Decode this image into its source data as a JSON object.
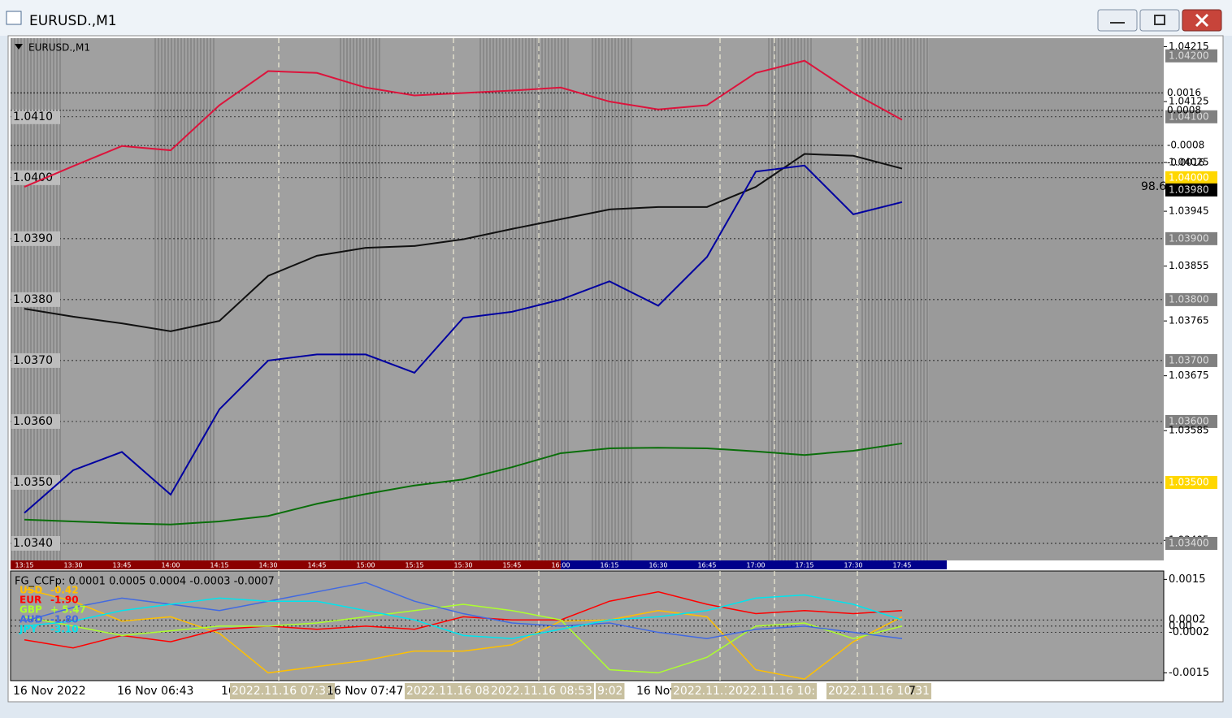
{
  "window": {
    "title": "EURUSD.,M1"
  },
  "chart_data": [
    {
      "type": "line",
      "title": "EURUSD.,M1",
      "x": [
        "13:15",
        "13:30",
        "13:45",
        "14:00",
        "14:15",
        "14:30",
        "14:45",
        "15:00",
        "15:15",
        "15:30",
        "15:45",
        "16:00",
        "16:15",
        "16:30",
        "16:45",
        "17:00",
        "17:15",
        "17:30",
        "17:45"
      ],
      "series": [
        {
          "color": "#dc143c",
          "values": [
            1.03985,
            1.04019,
            1.04052,
            1.04045,
            1.04119,
            1.04175,
            1.04172,
            1.04148,
            1.04135,
            1.04139,
            1.04143,
            1.04148,
            1.04125,
            1.04112,
            1.04119,
            1.04172,
            1.04192,
            1.04139,
            1.04095
          ]
        },
        {
          "color": "#111111",
          "values": [
            1.03785,
            1.03772,
            1.03761,
            1.03748,
            1.03765,
            1.03839,
            1.03872,
            1.03885,
            1.03888,
            1.03899,
            1.03916,
            1.03932,
            1.03948,
            1.03952,
            1.03952,
            1.03985,
            1.04039,
            1.04036,
            1.04015
          ]
        },
        {
          "color": "#0a6e0a",
          "values": [
            1.03439,
            1.03436,
            1.03433,
            1.03431,
            1.03436,
            1.03445,
            1.03465,
            1.03481,
            1.03495,
            1.03505,
            1.03525,
            1.03548,
            1.03556,
            1.03557,
            1.03556,
            1.03551,
            1.03545,
            1.03552,
            1.03564
          ]
        },
        {
          "color": "#0000a0",
          "values": [
            1.0345,
            1.0352,
            1.0355,
            1.0348,
            1.0362,
            1.037,
            1.0371,
            1.0371,
            1.0368,
            1.0377,
            1.0378,
            1.038,
            1.0383,
            1.0379,
            1.0387,
            1.0401,
            1.0402,
            1.0394,
            1.0396
          ]
        }
      ],
      "ylim": [
        1.03372,
        1.04229
      ],
      "yticks": [
        {
          "value": 1.041,
          "label": "1.0410"
        },
        {
          "value": 1.04,
          "label": "1.0400"
        },
        {
          "value": 1.039,
          "label": "1.0390"
        },
        {
          "value": 1.038,
          "label": "1.0380"
        },
        {
          "value": 1.037,
          "label": "1.0370"
        },
        {
          "value": 1.036,
          "label": "1.0360"
        },
        {
          "value": 1.035,
          "label": "1.0350"
        },
        {
          "value": 1.034,
          "label": "1.0340"
        }
      ],
      "price_labels": [
        1.04215,
        {
          "value": 1.042,
          "label": "1.04200",
          "color": "#808080"
        },
        1.04125,
        {
          "value": 1.041,
          "label": "1.04100",
          "color": "#808080"
        },
        1.04025,
        {
          "value": 1.04,
          "label": "1.04000",
          "color": "#ffd700"
        },
        {
          "value": 1.0398,
          "label": "1.03980",
          "color": "#000000"
        },
        1.03945,
        {
          "value": 1.039,
          "label": "1.03900",
          "color": "#808080"
        },
        1.03855,
        {
          "value": 1.038,
          "label": "1.03800",
          "color": "#808080"
        },
        1.03765,
        {
          "value": 1.037,
          "label": "1.03700",
          "color": "#808080"
        },
        1.03675,
        {
          "value": 1.036,
          "label": "1.03600",
          "color": "#808080"
        },
        1.03585,
        {
          "value": 1.035,
          "label": "1.03500",
          "color": "#ffd700"
        },
        1.03405,
        {
          "value": 1.034,
          "label": "1.03400",
          "color": "#808080"
        }
      ],
      "levels": [
        0.0016,
        0.0008,
        -0.0008,
        -0.0016
      ],
      "marker": 98.6
    },
    {
      "type": "line",
      "title": "FG_CCFp: 0.0001 0.0005 0.0004 -0.0003 -0.0007",
      "x": [
        "13:15",
        "13:30",
        "13:45",
        "14:00",
        "14:15",
        "14:30",
        "14:45",
        "15:00",
        "15:15",
        "15:30",
        "15:45",
        "16:00",
        "16:15",
        "16:30",
        "16:45",
        "17:00",
        "17:15",
        "17:30",
        "17:45"
      ],
      "series": [
        {
          "name": "USD",
          "reading": "-0.42",
          "color": "#ffc000",
          "values": [
            0.0012,
            0.0008,
            0.00016,
            0.0003,
            -0.00023,
            -0.0015,
            -0.0013,
            -0.0011,
            -0.0008,
            -0.0008,
            -0.0006,
            0.00016,
            0.0002,
            0.0005,
            0.0003,
            -0.0014,
            -0.0017,
            -0.0005,
            0.0003
          ]
        },
        {
          "name": "EUR",
          "reading": "-1.90",
          "color": "#ff0000",
          "values": [
            -0.00044,
            -0.0007,
            -0.0003,
            -0.0005,
            -0.0001,
            0,
            -0.0001,
            0,
            -0.0001,
            0.0003,
            0.0002,
            0.0002,
            0.0008,
            0.0011,
            0.0007,
            0.0004,
            0.0005,
            0.0004,
            0.0005
          ]
        },
        {
          "name": "GBP",
          "reading": "+  5.47",
          "color": "#adff2f",
          "values": [
            0.0003,
            0,
            -0.0003,
            -0.00015,
            0,
            0,
            0.0001,
            0.0003,
            0.0005,
            0.0007,
            0.0005,
            0.0002,
            -0.0014,
            -0.0015,
            -0.001,
            0,
            0.0001,
            -0.0004,
            0
          ]
        },
        {
          "name": "AUD",
          "reading": "-1.80",
          "color": "#4169e1",
          "values": [
            0.00016,
            0.0006,
            0.0009,
            0.0007,
            0.0005,
            0.0008,
            0.0011,
            0.0014,
            0.0008,
            0.0004,
            0.0001,
            0,
            0.0001,
            -0.0002,
            -0.0004,
            -0.0001,
            0,
            -0.0002,
            -0.0004
          ]
        },
        {
          "name": "JPY",
          "reading": "-3.10",
          "color": "#00e5ee",
          "values": [
            0,
            0.00016,
            0.0005,
            0.0007,
            0.0009,
            0.0008,
            0.0008,
            0.0005,
            0.0002,
            -0.0003,
            -0.0004,
            -0.0001,
            0.0002,
            0.0003,
            0.0005,
            0.0009,
            0.001,
            0.0007,
            0.0002
          ]
        }
      ],
      "ylim": [
        -0.00175,
        0.00177
      ],
      "yticks": [
        0.0015,
        0.0002,
        {
          "value": 0,
          "label": "0.00"
        },
        -0.0002,
        -0.0015
      ]
    }
  ],
  "footer": {
    "labels": [
      "16 Nov 2022",
      "16 Nov 06:43",
      "16",
      "2022.11.16 07:33",
      "16 Nov 07:47",
      "2022.11.16 08:",
      "2022.11.16 08:53",
      "9:02",
      "16 Nov",
      "2022.11.1",
      "2022.11.16 10:",
      "2022.11.16 10:31",
      "7"
    ]
  }
}
